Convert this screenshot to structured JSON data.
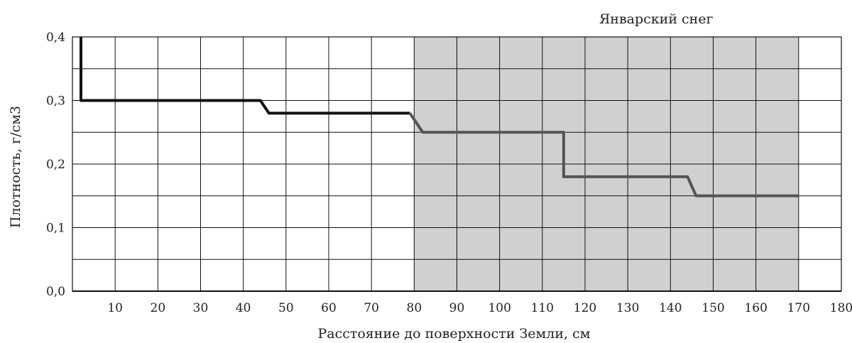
{
  "chart_data": {
    "type": "line",
    "title": "",
    "xlabel": "Расстояние до поверхности Земли, см",
    "ylabel": "Плотность, г/см3",
    "xlim": [
      0,
      180
    ],
    "ylim": [
      0.0,
      0.4
    ],
    "x_ticks": [
      10,
      20,
      30,
      40,
      50,
      60,
      70,
      80,
      90,
      100,
      110,
      120,
      130,
      140,
      150,
      160,
      170,
      180
    ],
    "x_tick_labels": [
      "10",
      "20",
      "30",
      "40",
      "50",
      "60",
      "70",
      "80",
      "90",
      "100",
      "110",
      "120",
      "130",
      "140",
      "150",
      "160",
      "170",
      "180"
    ],
    "y_ticks": [
      0.0,
      0.1,
      0.2,
      0.3,
      0.4
    ],
    "y_tick_labels": [
      "0,0",
      "0,1",
      "0,2",
      "0,3",
      "0,4"
    ],
    "grid": true,
    "shaded_region": {
      "label": "Январский снег",
      "x_range": [
        80,
        170
      ],
      "color": "#d0d0d0"
    },
    "series": [
      {
        "color": "#111111",
        "x": [
          2,
          2,
          44,
          46,
          79
        ],
        "y": [
          0.4,
          0.3,
          0.3,
          0.28,
          0.28
        ]
      },
      {
        "color": "#555555",
        "x": [
          79,
          82,
          115,
          115,
          144,
          146,
          170
        ],
        "y": [
          0.28,
          0.25,
          0.25,
          0.18,
          0.18,
          0.15,
          0.15
        ]
      }
    ]
  }
}
